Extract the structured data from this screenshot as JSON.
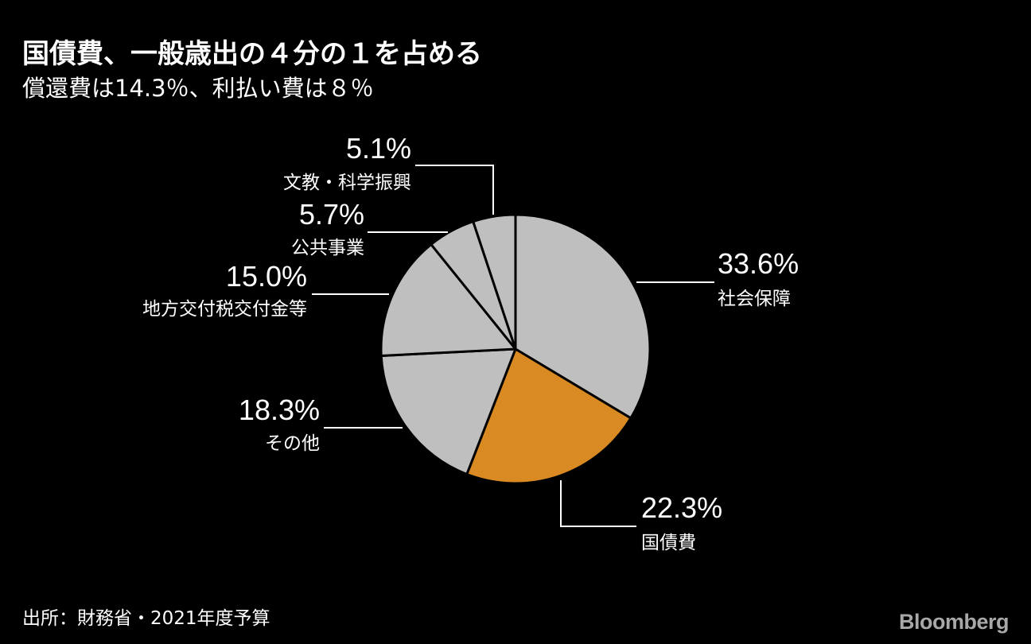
{
  "header": {
    "title": "国債費、一般歳出の４分の１を占める",
    "subtitle": "償還費は14.3％、利払い費は８％"
  },
  "footer": {
    "source": "出所：財務省・2021年度予算",
    "logo": "Bloomberg"
  },
  "colors": {
    "background": "#000000",
    "slice_default": "#bfbfbf",
    "slice_highlight": "#d98a22",
    "slice_border": "#000000",
    "leader_line": "#ffffff",
    "text": "#ffffff"
  },
  "chart_data": {
    "type": "pie",
    "start": "12 o'clock",
    "direction": "clockwise",
    "slices": [
      {
        "label": "社会保障",
        "value": 33.6,
        "value_label": "33.6%",
        "highlight": false
      },
      {
        "label": "国債費",
        "value": 22.3,
        "value_label": "22.3%",
        "highlight": true
      },
      {
        "label": "その他",
        "value": 18.3,
        "value_label": "18.3%",
        "highlight": false
      },
      {
        "label": "地方交付税交付金等",
        "value": 15.0,
        "value_label": "15.0%",
        "highlight": false
      },
      {
        "label": "公共事業",
        "value": 5.7,
        "value_label": "5.7%",
        "highlight": false
      },
      {
        "label": "文教・科学振興",
        "value": 5.1,
        "value_label": "5.1%",
        "highlight": false
      }
    ]
  }
}
